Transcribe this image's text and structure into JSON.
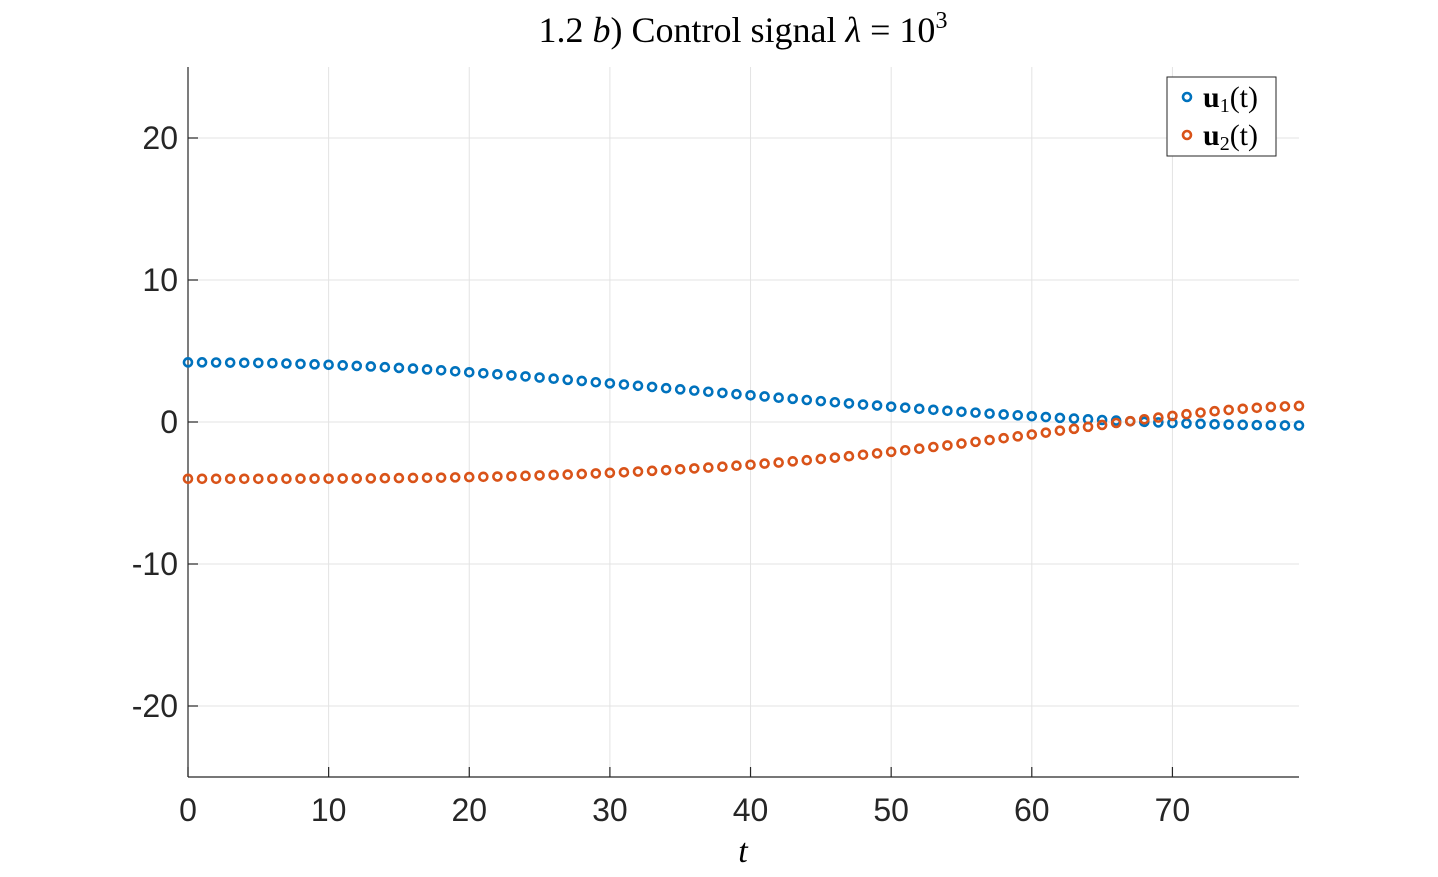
{
  "chart_data": {
    "type": "scatter",
    "title": {
      "prefix": "1.2 ",
      "italic": "b",
      "middle": ") Control signal ",
      "symbol": "λ",
      "equals": " = 10",
      "superscript": "3"
    },
    "xlabel": "t",
    "ylabel": "",
    "xlim": [
      0,
      79
    ],
    "ylim": [
      -25,
      25
    ],
    "xticks": [
      0,
      10,
      20,
      30,
      40,
      50,
      60,
      70
    ],
    "yticks": [
      -20,
      -10,
      0,
      10,
      20
    ],
    "xtick_labels": [
      "0",
      "10",
      "20",
      "30",
      "40",
      "50",
      "60",
      "70"
    ],
    "ytick_labels": [
      "-20",
      "-10",
      "0",
      "10",
      "20"
    ],
    "grid": true,
    "legend_position": "top-right",
    "marker": "circle-open",
    "x": [
      0,
      1,
      2,
      3,
      4,
      5,
      6,
      7,
      8,
      9,
      10,
      11,
      12,
      13,
      14,
      15,
      16,
      17,
      18,
      19,
      20,
      21,
      22,
      23,
      24,
      25,
      26,
      27,
      28,
      29,
      30,
      31,
      32,
      33,
      34,
      35,
      36,
      37,
      38,
      39,
      40,
      41,
      42,
      43,
      44,
      45,
      46,
      47,
      48,
      49,
      50,
      51,
      52,
      53,
      54,
      55,
      56,
      57,
      58,
      59,
      60,
      61,
      62,
      63,
      64,
      65,
      66,
      67,
      68,
      69,
      70,
      71,
      72,
      73,
      74,
      75,
      76,
      77,
      78,
      79
    ],
    "series": [
      {
        "name": "u1(t)",
        "legend": {
          "bold": "u",
          "sub": "1",
          "rest": "(t)"
        },
        "color": "#0072BD",
        "values": [
          4.2,
          4.2,
          4.19,
          4.18,
          4.17,
          4.16,
          4.14,
          4.12,
          4.09,
          4.06,
          4.03,
          3.99,
          3.95,
          3.91,
          3.86,
          3.81,
          3.76,
          3.7,
          3.64,
          3.57,
          3.5,
          3.43,
          3.36,
          3.28,
          3.21,
          3.13,
          3.05,
          2.97,
          2.89,
          2.8,
          2.72,
          2.64,
          2.55,
          2.47,
          2.38,
          2.3,
          2.21,
          2.13,
          2.05,
          1.96,
          1.88,
          1.8,
          1.71,
          1.63,
          1.55,
          1.47,
          1.39,
          1.31,
          1.23,
          1.16,
          1.08,
          1.01,
          0.93,
          0.86,
          0.79,
          0.72,
          0.66,
          0.59,
          0.53,
          0.47,
          0.41,
          0.35,
          0.29,
          0.24,
          0.19,
          0.14,
          0.1,
          0.05,
          0.01,
          -0.03,
          -0.07,
          -0.1,
          -0.13,
          -0.16,
          -0.18,
          -0.2,
          -0.22,
          -0.23,
          -0.24,
          -0.25
        ]
      },
      {
        "name": "u2(t)",
        "legend": {
          "bold": "u",
          "sub": "2",
          "rest": "(t)"
        },
        "color": "#D95319",
        "values": [
          -4.0,
          -4.0,
          -4.0,
          -4.0,
          -4.0,
          -4.0,
          -4.0,
          -4.0,
          -3.99,
          -3.99,
          -3.99,
          -3.98,
          -3.98,
          -3.97,
          -3.96,
          -3.95,
          -3.94,
          -3.93,
          -3.92,
          -3.9,
          -3.88,
          -3.86,
          -3.84,
          -3.82,
          -3.79,
          -3.76,
          -3.73,
          -3.7,
          -3.66,
          -3.62,
          -3.58,
          -3.54,
          -3.49,
          -3.44,
          -3.39,
          -3.33,
          -3.27,
          -3.21,
          -3.15,
          -3.08,
          -3.01,
          -2.93,
          -2.86,
          -2.77,
          -2.69,
          -2.6,
          -2.51,
          -2.41,
          -2.31,
          -2.21,
          -2.1,
          -1.99,
          -1.88,
          -1.76,
          -1.65,
          -1.52,
          -1.4,
          -1.27,
          -1.14,
          -1.01,
          -0.88,
          -0.75,
          -0.61,
          -0.48,
          -0.34,
          -0.21,
          -0.07,
          0.06,
          0.19,
          0.31,
          0.43,
          0.55,
          0.66,
          0.76,
          0.85,
          0.93,
          1.0,
          1.06,
          1.1,
          1.13
        ]
      }
    ]
  }
}
